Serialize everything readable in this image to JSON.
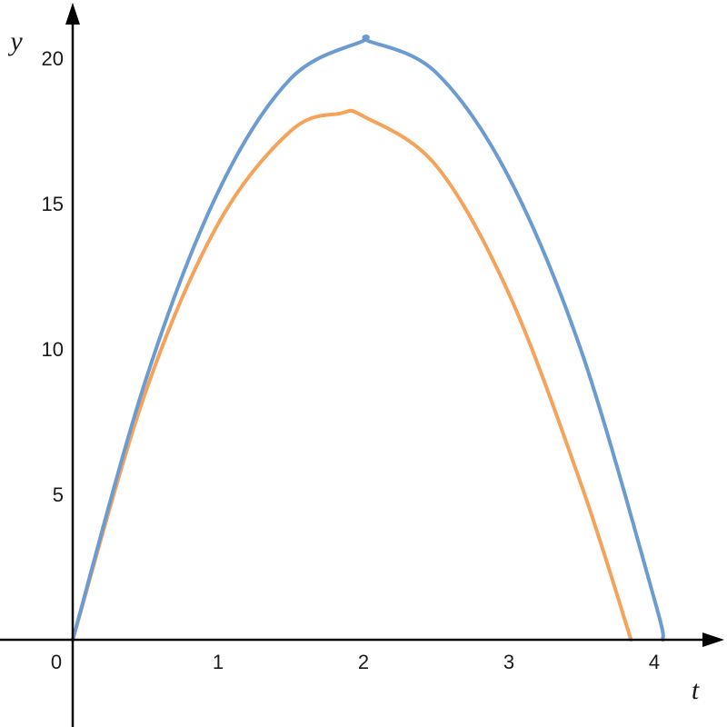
{
  "chart_data": {
    "type": "line",
    "title": "",
    "xlabel": "t",
    "ylabel": "y",
    "xlim": [
      0,
      4.5
    ],
    "ylim": [
      -3,
      21.5
    ],
    "grid": false,
    "legend": "none",
    "x_ticks": [
      {
        "value": 0,
        "label": "0"
      },
      {
        "value": 1,
        "label": "1"
      },
      {
        "value": 2,
        "label": "2"
      },
      {
        "value": 3,
        "label": "3"
      },
      {
        "value": 4,
        "label": "4"
      }
    ],
    "y_ticks": [
      {
        "value": 5,
        "label": "5"
      },
      {
        "value": 10,
        "label": "10"
      },
      {
        "value": 15,
        "label": "15"
      },
      {
        "value": 20,
        "label": "20"
      }
    ],
    "series": [
      {
        "color": "#6b9bd1",
        "x": [
          0,
          0.5,
          1.0,
          1.5,
          2.0,
          2.03,
          2.5,
          3.0,
          3.5,
          4.0,
          4.06
        ],
        "y": [
          0,
          8.9,
          15.4,
          19.3,
          20.6,
          20.6,
          19.5,
          15.9,
          9.9,
          1.4,
          0
        ]
      },
      {
        "color": "#f5a25a",
        "x": [
          0,
          0.5,
          1.0,
          1.5,
          1.84,
          2.0,
          2.5,
          3.0,
          3.5,
          3.84
        ],
        "y": [
          0,
          8.5,
          14.3,
          17.5,
          18.1,
          18.0,
          16.3,
          11.9,
          5.3,
          0
        ]
      }
    ]
  }
}
